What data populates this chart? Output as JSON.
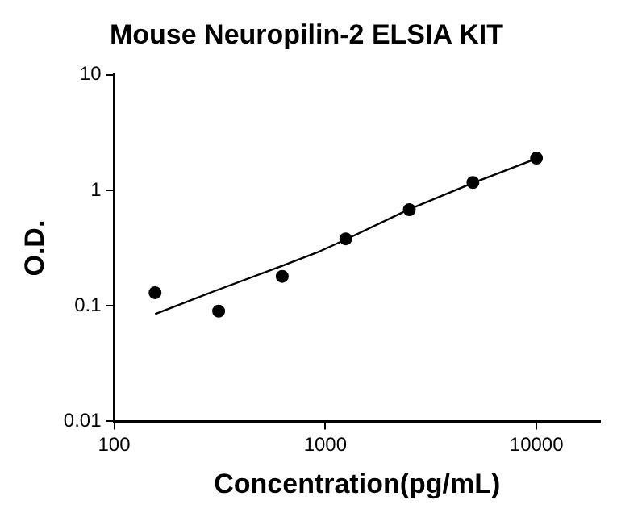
{
  "chart_data": {
    "type": "scatter",
    "title": "Mouse Neuropilin-2 ELSIA KIT",
    "xlabel": "Concentration(pg/mL)",
    "ylabel": "O.D.",
    "log": "xy",
    "grid": false,
    "legend": false,
    "marker": "circle",
    "xlim": [
      100,
      20000
    ],
    "xticks": [
      100,
      1000,
      10000
    ],
    "ylim": [
      0.01,
      10
    ],
    "yticks": [
      0.01,
      0.1,
      1,
      10
    ],
    "series": [
      {
        "type": "scatter",
        "color": "#000000",
        "x": [
          156.25,
          312.5,
          625,
          1250,
          2500,
          5000,
          10000
        ],
        "values": [
          0.13,
          0.09,
          0.18,
          0.38,
          0.68,
          1.17,
          1.9
        ]
      },
      {
        "type": "line",
        "color": "#000000",
        "marker": "none",
        "line_style": "solid",
        "x": [
          156.25,
          298,
          618,
          916,
          1250,
          2500,
          5000,
          10000
        ],
        "values": [
          0.085,
          0.134,
          0.22,
          0.29,
          0.375,
          0.686,
          1.16,
          1.88
        ]
      }
    ]
  }
}
